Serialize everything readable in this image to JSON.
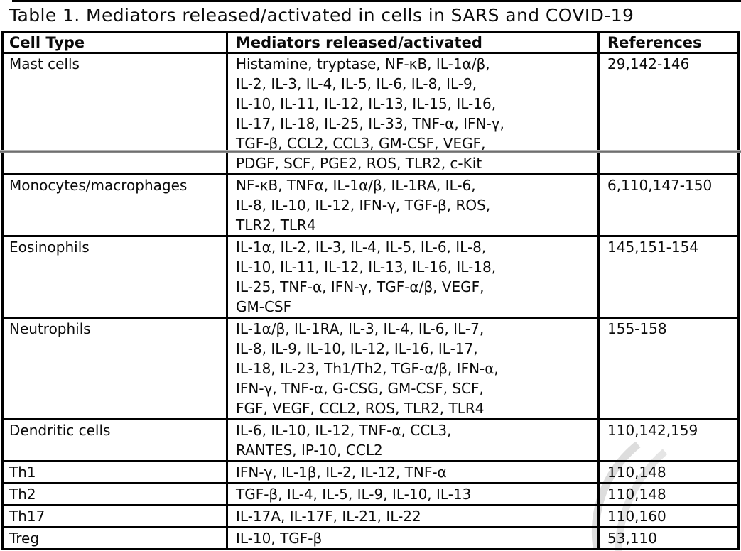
{
  "page": {
    "title": "Table 1. Mediators released/activated in cells in SARS and COVID-19"
  },
  "table": {
    "columns": [
      "Cell Type",
      "Mediators released/activated",
      "References"
    ],
    "rows": [
      {
        "cell_type": "Mast cells",
        "mediators_lines": [
          "Histamine, tryptase, NF-κB, IL-1α/β,",
          "IL-2, IL-3, IL-4, IL-5, IL-6, IL-8, IL-9,",
          "IL-10, IL-11, IL-12, IL-13, IL-15, IL-16,",
          "IL-17, IL-18, IL-25, IL-33, TNF-α, IFN-γ,",
          "TGF-β, CCL2, CCL3, GM-CSF, VEGF,"
        ],
        "references": "29,142-146",
        "split": "top"
      },
      {
        "cell_type": "",
        "mediators_lines": [
          "PDGF, SCF, PGE2, ROS, TLR2, c-Kit"
        ],
        "references": "",
        "split": "bottom"
      },
      {
        "cell_type": "Monocytes/macrophages",
        "mediators_lines": [
          "NF-κB, TNFα, IL-1α/β, IL-1RA, IL-6,",
          "IL-8, IL-10, IL-12, IFN-γ, TGF-β, ROS,",
          "TLR2, TLR4"
        ],
        "references": "6,110,147-150"
      },
      {
        "cell_type": "Eosinophils",
        "mediators_lines": [
          "IL-1α, IL-2, IL-3, IL-4, IL-5, IL-6, IL-8,",
          "IL-10, IL-11, IL-12, IL-13, IL-16, IL-18,",
          "IL-25, TNF-α, IFN-γ, TGF-α/β, VEGF,",
          "GM-CSF"
        ],
        "references": "145,151-154"
      },
      {
        "cell_type": "Neutrophils",
        "mediators_lines": [
          "IL-1α/β, IL-1RA, IL-3, IL-4, IL-6, IL-7,",
          "IL-8, IL-9, IL-10, IL-12, IL-16, IL-17,",
          "IL-18, IL-23, Th1/Th2, TGF-α/β, IFN-α,",
          "IFN-γ, TNF-α, G-CSG, GM-CSF, SCF,",
          "FGF, VEGF, CCL2, ROS, TLR2, TLR4"
        ],
        "references": "155-158"
      },
      {
        "cell_type": "Dendritic cells",
        "mediators_lines": [
          "IL-6, IL-10, IL-12, TNF-α, CCL3,",
          "RANTES, IP-10, CCL2"
        ],
        "references": "110,142,159"
      },
      {
        "cell_type": "Th1",
        "mediators_lines": [
          "IFN-γ, IL-1β, IL-2, IL-12, TNF-α"
        ],
        "references": "110,148"
      },
      {
        "cell_type": "Th2",
        "mediators_lines": [
          "TGF-β, IL-4, IL-5, IL-9, IL-10, IL-13"
        ],
        "references": "110,148"
      },
      {
        "cell_type": "Th17",
        "mediators_lines": [
          "IL-17A, IL-17F, IL-21, IL-22"
        ],
        "references": "110,160"
      },
      {
        "cell_type": "Treg",
        "mediators_lines": [
          "IL-10, TGF-β"
        ],
        "references": "53,110"
      }
    ]
  },
  "colors": {
    "table_border": "#000000",
    "page_break_line": "#6f6f6f",
    "watermark": "#d6d6d6"
  }
}
